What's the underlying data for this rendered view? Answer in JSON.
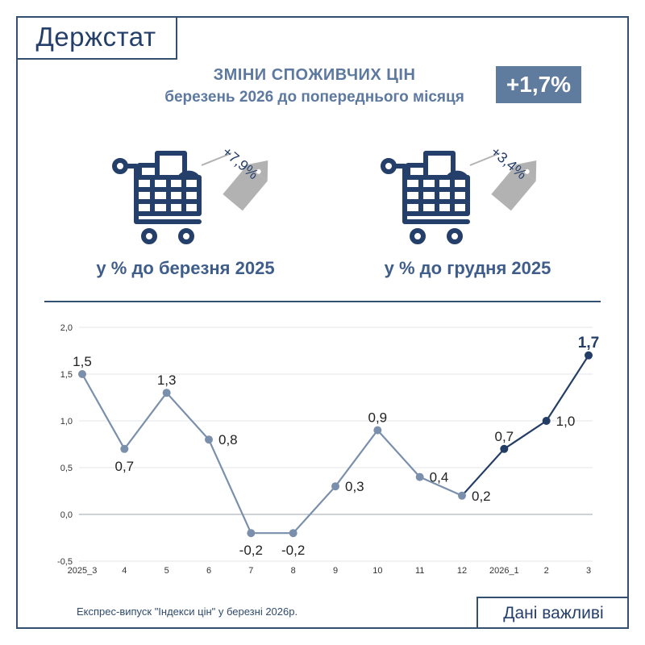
{
  "header": {
    "logo": "Держстат"
  },
  "title": {
    "line1": "ЗМІНИ СПОЖИВЧИХ ЦІН",
    "line2": "березень 2026 до попереднього місяця"
  },
  "badge": {
    "value": "+1,7%"
  },
  "cards": [
    {
      "tag": "+7,9%",
      "label": "у % до березня 2025",
      "icon": "shopping-cart-icon"
    },
    {
      "tag": "+3,4%",
      "label": "у % до грудня 2025",
      "icon": "shopping-cart-icon"
    }
  ],
  "footer": {
    "note": "Експрес-випуск \"Індекси цін\" у березні 2026р.",
    "box": "Дані важливі"
  },
  "colors": {
    "primary": "#253f6b",
    "light_series": "#7a8fac",
    "dark_series": "#243d66",
    "badge": "#5f7b9e",
    "tag": "#a9a9a9"
  },
  "chart_data": {
    "type": "line",
    "categories": [
      "2025_3",
      "4",
      "5",
      "6",
      "7",
      "8",
      "9",
      "10",
      "11",
      "12",
      "2026_1",
      "2",
      "3"
    ],
    "values": [
      1.5,
      0.7,
      1.3,
      0.8,
      -0.2,
      -0.2,
      0.3,
      0.9,
      0.4,
      0.2,
      0.7,
      1.0,
      1.7
    ],
    "value_labels": [
      "1,5",
      "0,7",
      "1,3",
      "0,8",
      "-0,2",
      "-0,2",
      "0,3",
      "0,9",
      "0,4",
      "0,2",
      "0,7",
      "1,0",
      "1,7"
    ],
    "segments": [
      {
        "from": 0,
        "to": 9,
        "style": "2025"
      },
      {
        "from": 9,
        "to": 12,
        "style": "2026"
      }
    ],
    "ylim": [
      -0.5,
      2.0
    ],
    "yticks": [
      -0.5,
      0.0,
      0.5,
      1.0,
      1.5,
      2.0
    ],
    "ytick_labels": [
      "-0,5",
      "0,0",
      "0,5",
      "1,0",
      "1,5",
      "2,0"
    ],
    "grid": true,
    "title": "",
    "xlabel": "",
    "ylabel": ""
  }
}
